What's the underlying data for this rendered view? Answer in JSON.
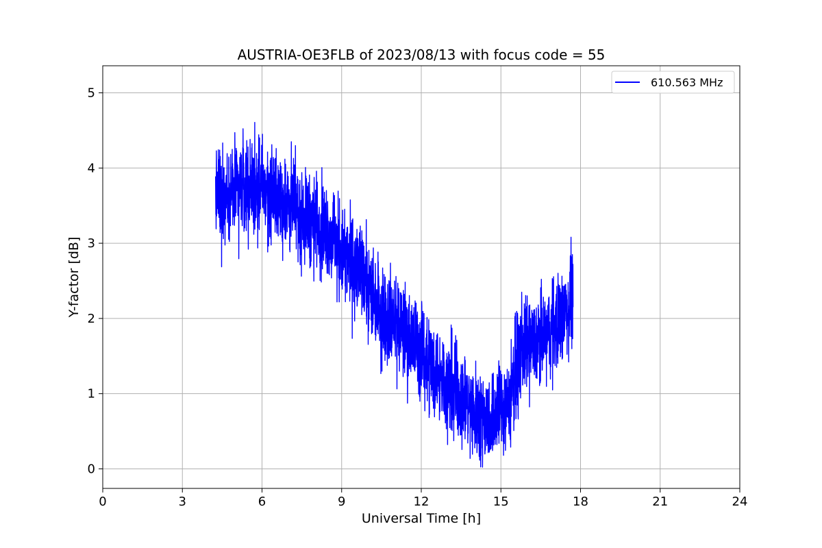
{
  "chart_data": {
    "type": "line",
    "title": "AUSTRIA-OE3FLB of 2023/08/13 with focus code = 55",
    "xlabel": "Universal Time [h]",
    "ylabel": "Y-factor [dB]",
    "xlim": [
      0,
      24
    ],
    "ylim": [
      -0.26,
      5.36
    ],
    "xticks": [
      0,
      3,
      6,
      9,
      12,
      15,
      18,
      21,
      24
    ],
    "yticks": [
      0,
      1,
      2,
      3,
      4,
      5
    ],
    "grid": true,
    "legend_position": "top-right",
    "series": [
      {
        "name": "610.563 MHz",
        "color": "#0000ff",
        "noise_amplitude": 0.38,
        "x": [
          4.25,
          4.5,
          5.0,
          5.5,
          5.8,
          6.0,
          6.5,
          7.0,
          7.5,
          8.0,
          8.5,
          9.0,
          9.5,
          10.0,
          10.5,
          11.0,
          11.5,
          12.0,
          12.5,
          13.0,
          13.5,
          14.0,
          14.5,
          15.0,
          15.3,
          15.5,
          15.7,
          16.0,
          16.5,
          17.0,
          17.5,
          17.72
        ],
        "y": [
          3.6,
          3.65,
          3.7,
          3.75,
          3.8,
          3.7,
          3.6,
          3.5,
          3.4,
          3.3,
          3.15,
          2.85,
          2.7,
          2.4,
          2.1,
          1.95,
          1.75,
          1.55,
          1.35,
          1.1,
          0.95,
          0.75,
          0.65,
          0.8,
          0.9,
          1.25,
          1.55,
          1.65,
          1.7,
          1.9,
          2.1,
          2.35
        ]
      }
    ]
  }
}
